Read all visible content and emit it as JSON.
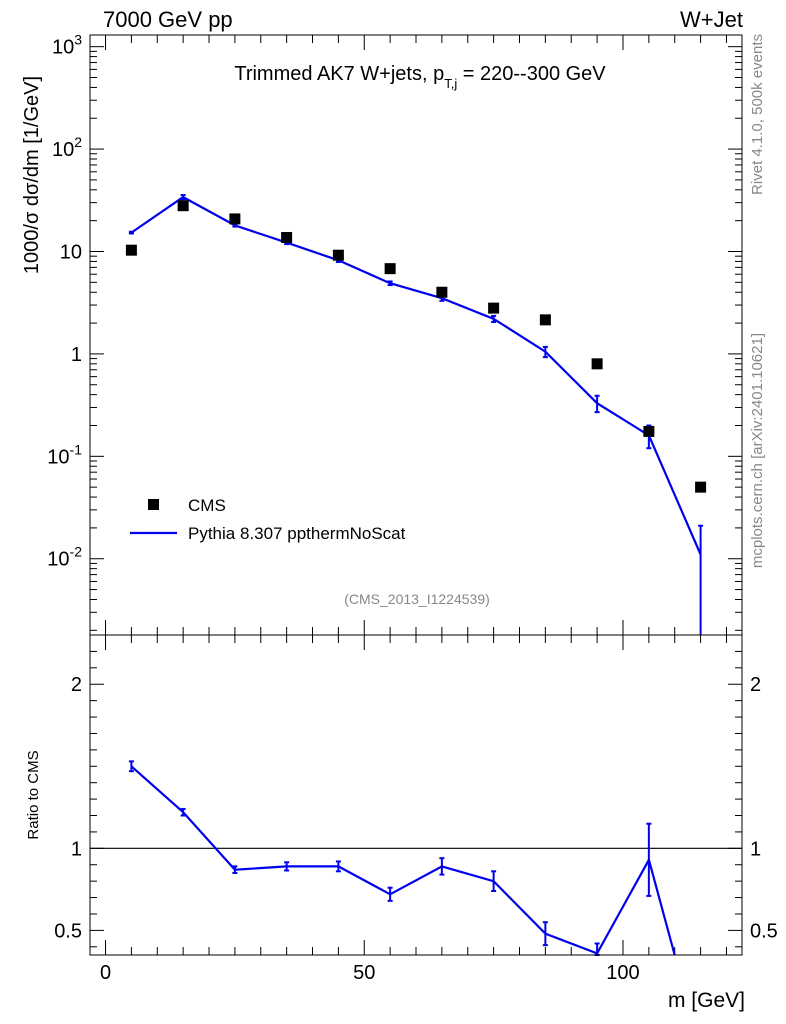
{
  "header": {
    "left": "7000 GeV pp",
    "right": "W+Jet"
  },
  "side": {
    "top": "Rivet 4.1.0,  500k events",
    "bottom": "mcplots.cern.ch [arXiv:2401.10621]"
  },
  "chart_data": [
    {
      "type": "scatter",
      "panel": "main",
      "title_main": "Trimmed AK7 W+jets, p",
      "title_sub": "T,j",
      "title_tail": " = 220--300 GeV",
      "ylabel": "1000/σ  dσ/dm [1/GeV]",
      "yscale": "log",
      "ylim": [
        0.0018,
        1300
      ],
      "xlim": [
        -3,
        123
      ],
      "ytick_labels": [
        "10^-2",
        "10^-1",
        "1",
        "10",
        "10^2",
        "10^3"
      ],
      "watermark": "(CMS_2013_I1224539)",
      "series": [
        {
          "name": "CMS",
          "style": "markers",
          "x": [
            5,
            15,
            25,
            35,
            45,
            55,
            65,
            75,
            85,
            95,
            105,
            115
          ],
          "y": [
            10.3,
            28.0,
            20.8,
            13.7,
            9.2,
            6.8,
            4.0,
            2.8,
            2.15,
            0.8,
            0.175,
            0.05
          ]
        },
        {
          "name": "Pythia 8.307 ppthermNoScat",
          "style": "line",
          "x": [
            5,
            15,
            25,
            35,
            45,
            55,
            65,
            75,
            85,
            95,
            105,
            115
          ],
          "y": [
            15.3,
            34.0,
            18.0,
            12.2,
            8.2,
            4.9,
            3.5,
            2.2,
            1.05,
            0.33,
            0.16,
            0.011
          ],
          "err_low": [
            0.3,
            1.6,
            0.5,
            0.4,
            0.3,
            0.2,
            0.2,
            0.15,
            0.12,
            0.06,
            0.04,
            0.0095
          ],
          "err_high": [
            0.3,
            1.6,
            0.5,
            0.4,
            0.3,
            0.2,
            0.2,
            0.15,
            0.12,
            0.06,
            0.04,
            0.01
          ]
        }
      ]
    },
    {
      "type": "line",
      "panel": "ratio",
      "ylabel": "Ratio to CMS",
      "xlabel": "m [GeV]",
      "ylim": [
        0.35,
        2.3
      ],
      "xlim": [
        -3,
        123
      ],
      "xtick_labels": [
        "0",
        "50",
        "100"
      ],
      "ytick_labels": [
        "0.5",
        "1",
        "2"
      ],
      "reference_line": 1.0,
      "series": [
        {
          "name": "Pythia 8.307 ppthermNoScat / CMS",
          "x": [
            5,
            15,
            25,
            35,
            45,
            55,
            65,
            75,
            85,
            95,
            105,
            110
          ],
          "y": [
            1.5,
            1.22,
            0.87,
            0.89,
            0.89,
            0.72,
            0.89,
            0.8,
            0.48,
            0.36,
            0.93,
            0.35
          ],
          "err_low": [
            0.03,
            0.02,
            0.02,
            0.025,
            0.03,
            0.04,
            0.05,
            0.06,
            0.07,
            0.06,
            0.22,
            0
          ],
          "err_high": [
            0.03,
            0.02,
            0.02,
            0.025,
            0.03,
            0.04,
            0.05,
            0.06,
            0.07,
            0.06,
            0.22,
            0
          ]
        }
      ]
    }
  ]
}
